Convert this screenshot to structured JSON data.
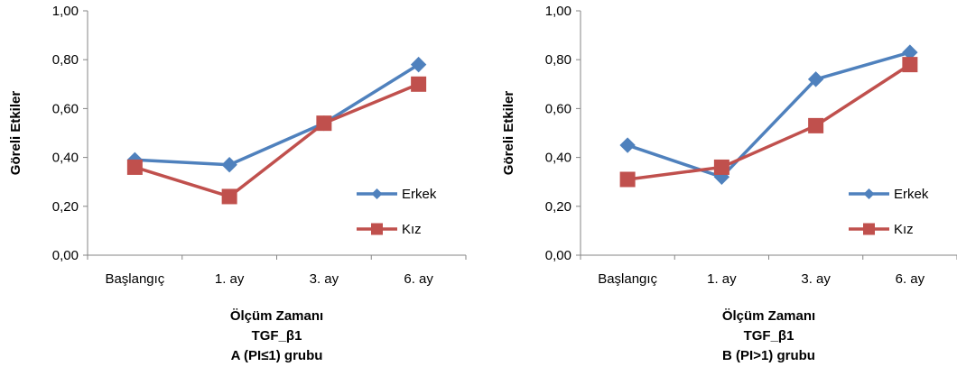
{
  "chart_data": [
    {
      "type": "line",
      "categories": [
        "Başlangıç",
        "1. ay",
        "3. ay",
        "6. ay"
      ],
      "series": [
        {
          "name": "Erkek",
          "values": [
            0.39,
            0.37,
            0.54,
            0.78
          ],
          "color": "#4F81BD",
          "marker": "diamond"
        },
        {
          "name": "Kız",
          "values": [
            0.36,
            0.24,
            0.54,
            0.7
          ],
          "color": "#C0504D",
          "marker": "square"
        }
      ],
      "ylabel": "Göreli Etkiler",
      "xlabel_lines": [
        "Ölçüm Zamanı",
        "TGF_β1",
        "A (PI≤1) grubu"
      ],
      "ylim": [
        0,
        1
      ],
      "yticks": [
        "0,00",
        "0,20",
        "0,40",
        "0,60",
        "0,80",
        "1,00"
      ],
      "grid": false,
      "legend_position": "right"
    },
    {
      "type": "line",
      "categories": [
        "Başlangıç",
        "1. ay",
        "3. ay",
        "6. ay"
      ],
      "series": [
        {
          "name": "Erkek",
          "values": [
            0.45,
            0.32,
            0.72,
            0.83
          ],
          "color": "#4F81BD",
          "marker": "diamond"
        },
        {
          "name": "Kız",
          "values": [
            0.31,
            0.36,
            0.53,
            0.78
          ],
          "color": "#C0504D",
          "marker": "square"
        }
      ],
      "ylabel": "Göreli Etkiler",
      "xlabel_lines": [
        "Ölçüm Zamanı",
        "TGF_β1",
        "B (PI>1) grubu"
      ],
      "ylim": [
        0,
        1
      ],
      "yticks": [
        "0,00",
        "0,20",
        "0,40",
        "0,60",
        "0,80",
        "1,00"
      ],
      "grid": false,
      "legend_position": "right"
    }
  ]
}
